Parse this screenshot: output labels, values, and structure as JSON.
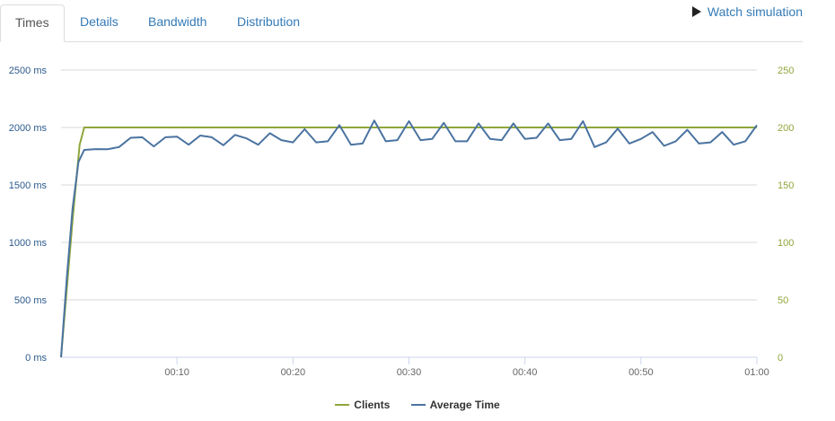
{
  "tabs": [
    {
      "label": "Times",
      "active": true
    },
    {
      "label": "Details",
      "active": false
    },
    {
      "label": "Bandwidth",
      "active": false
    },
    {
      "label": "Distribution",
      "active": false
    }
  ],
  "watch_label": "Watch simulation",
  "chart_data": {
    "type": "line",
    "x_ticks": [
      "00:10",
      "00:20",
      "00:30",
      "00:40",
      "00:50",
      "01:00"
    ],
    "x_tick_seconds": [
      10,
      20,
      30,
      40,
      50,
      60
    ],
    "xlim": [
      0,
      60
    ],
    "left_axis": {
      "ticks": [
        "0 ms",
        "500 ms",
        "1000 ms",
        "1500 ms",
        "2000 ms",
        "2500 ms"
      ],
      "values": [
        0,
        500,
        1000,
        1500,
        2000,
        2500
      ],
      "ylim": [
        0,
        2500
      ],
      "color": "#2c5a8c"
    },
    "right_axis": {
      "ticks": [
        "0",
        "50",
        "100",
        "150",
        "200",
        "250"
      ],
      "values": [
        0,
        50,
        100,
        150,
        200,
        250
      ],
      "ylim": [
        0,
        250
      ],
      "color": "#8fa63a"
    },
    "grid": true,
    "legend_position": "bottom",
    "series": [
      {
        "name": "Clients",
        "axis": "right",
        "color": "#8fa63a",
        "x": [
          0,
          1,
          1.6,
          2,
          60
        ],
        "y": [
          0,
          120,
          185,
          200,
          200
        ]
      },
      {
        "name": "Average Time",
        "axis": "left",
        "color": "#4a73a0",
        "x": [
          0,
          0.5,
          1,
          1.5,
          2,
          3,
          4,
          5,
          6,
          7,
          8,
          9,
          10,
          11,
          12,
          13,
          14,
          15,
          16,
          17,
          18,
          19,
          20,
          21,
          22,
          23,
          24,
          25,
          26,
          27,
          28,
          29,
          30,
          31,
          32,
          33,
          34,
          35,
          36,
          37,
          38,
          39,
          40,
          41,
          42,
          43,
          44,
          45,
          46,
          47,
          48,
          49,
          50,
          51,
          52,
          53,
          54,
          55,
          56,
          57,
          58,
          59,
          60
        ],
        "y": [
          0,
          700,
          1300,
          1700,
          1805,
          1812,
          1810,
          1830,
          1910,
          1915,
          1835,
          1915,
          1920,
          1850,
          1930,
          1915,
          1845,
          1935,
          1905,
          1850,
          1950,
          1890,
          1870,
          1985,
          1870,
          1880,
          2020,
          1850,
          1860,
          2060,
          1880,
          1890,
          2055,
          1890,
          1900,
          2040,
          1880,
          1880,
          2035,
          1900,
          1890,
          2035,
          1900,
          1910,
          2035,
          1890,
          1900,
          2055,
          1830,
          1870,
          1990,
          1860,
          1900,
          1960,
          1840,
          1880,
          1980,
          1860,
          1870,
          1960,
          1850,
          1880,
          2020
        ]
      }
    ]
  }
}
